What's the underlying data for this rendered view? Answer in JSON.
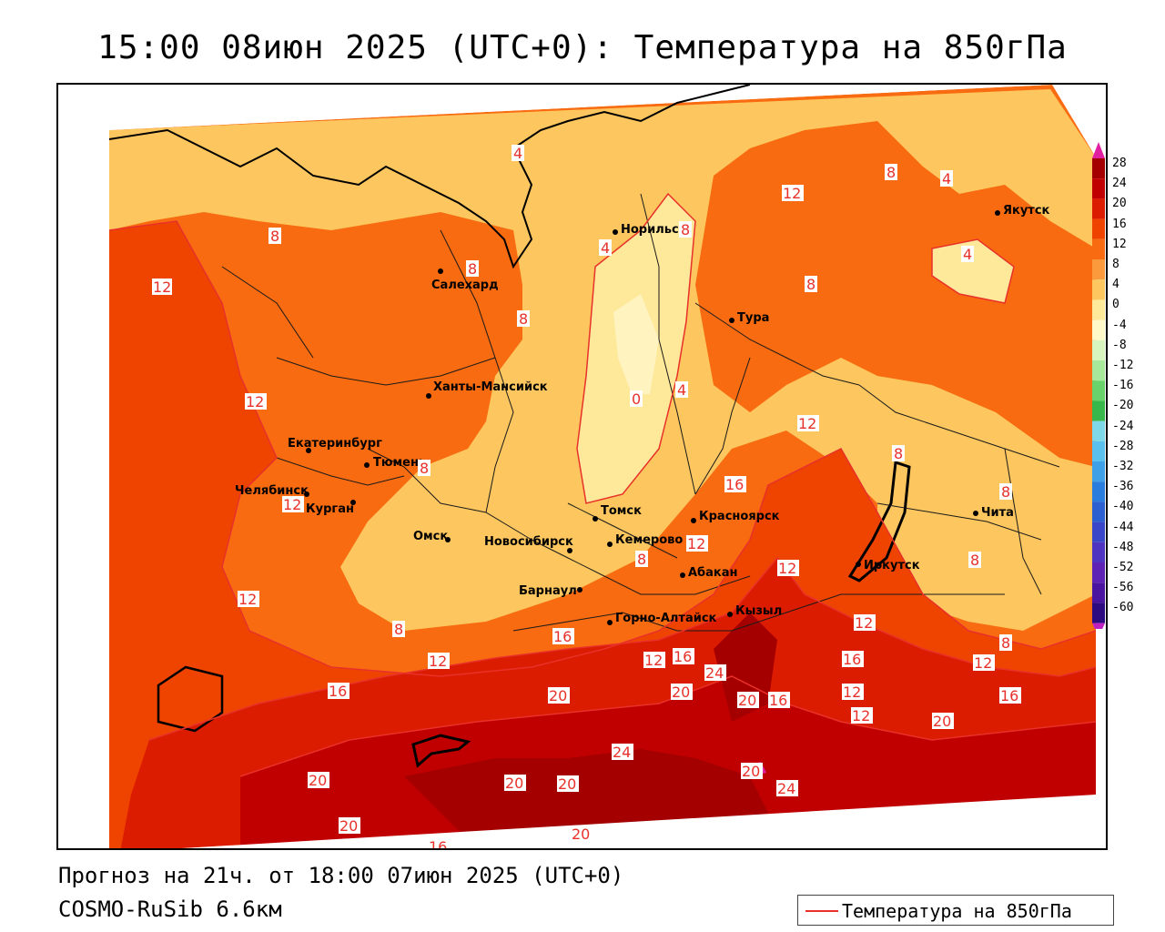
{
  "title": "15:00 08июн 2025 (UTC+0): Температура на 850гПа",
  "footer": {
    "forecast": "Прогноз на 21ч. от 18:00 07июн 2025 (UTC+0)",
    "model": "COSMO-RuSib 6.6км"
  },
  "legend": {
    "label": "Температура на 850гПа",
    "color": "#e8312a"
  },
  "colorbar": {
    "levels": [
      "28",
      "24",
      "20",
      "16",
      "12",
      "8",
      "4",
      "0",
      "-4",
      "-8",
      "-12",
      "-16",
      "-20",
      "-24",
      "-28",
      "-32",
      "-36",
      "-40",
      "-44",
      "-48",
      "-52",
      "-56",
      "-60"
    ],
    "colors": [
      "#a50000",
      "#c00000",
      "#dc1c00",
      "#ee4400",
      "#f86b10",
      "#fb9a3c",
      "#fdc65e",
      "#fee89a",
      "#fff8c8",
      "#d8f5c0",
      "#a7e89a",
      "#6ad26a",
      "#38b84a",
      "#7fd8e8",
      "#5cc0ec",
      "#3ea0e6",
      "#2a7ddc",
      "#2c5fd0",
      "#3a46c8",
      "#4e34c0",
      "#5e22b4",
      "#4a14a0",
      "#2c0a80"
    ],
    "top_color": "#e020a0",
    "bottom_color": "#c020c0"
  },
  "cities": [
    {
      "name": "Норильск"
    },
    {
      "name": "Якутск"
    },
    {
      "name": "Салехард"
    },
    {
      "name": "Тура"
    },
    {
      "name": "Ханты-Мансийск"
    },
    {
      "name": "Екатеринбург"
    },
    {
      "name": "Тюмень"
    },
    {
      "name": "Челябинск"
    },
    {
      "name": "Курган"
    },
    {
      "name": "Омск"
    },
    {
      "name": "Новосибирск"
    },
    {
      "name": "Томск"
    },
    {
      "name": "Кемерово"
    },
    {
      "name": "Красноярск"
    },
    {
      "name": "Барнаул"
    },
    {
      "name": "Абакан"
    },
    {
      "name": "Горно-Алтайск"
    },
    {
      "name": "Кызыл"
    },
    {
      "name": "Иркутск"
    },
    {
      "name": "Чита"
    }
  ],
  "contour_labels": [
    "4",
    "8",
    "12",
    "16",
    "20",
    "24",
    "0"
  ]
}
